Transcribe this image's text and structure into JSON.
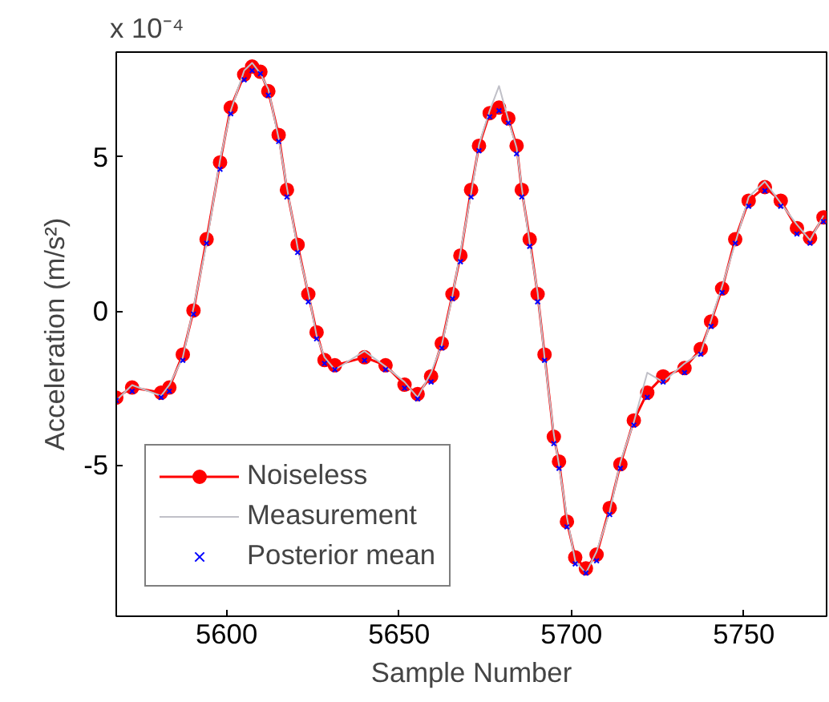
{
  "chart_data": {
    "type": "line",
    "xlabel": "Sample Number",
    "ylabel": "Acceleration (m/s²)",
    "annotations": [
      "x 10⁻⁴"
    ],
    "x": [
      5568,
      5572.6,
      5581,
      5583.4,
      5587.3,
      5590.4,
      5594.2,
      5598.1,
      5601.2,
      5605.1,
      5607.4,
      5609.8,
      5612.1,
      5615.1,
      5617.5,
      5620.6,
      5623.7,
      5626.1,
      5628.4,
      5631.4,
      5640,
      5646.1,
      5651.6,
      5655.4,
      5659.3,
      5662.4,
      5665.5,
      5667.8,
      5670.9,
      5673.2,
      5676.3,
      5679,
      5681.7,
      5684.1,
      5685.6,
      5687.9,
      5690.2,
      5692.2,
      5694.9,
      5696.4,
      5698.7,
      5701.1,
      5704.2,
      5707.3,
      5711.1,
      5714.2,
      5718.1,
      5722,
      5726.6,
      5732.8,
      5737.5,
      5740.5,
      5743.7,
      5747.5,
      5751.4,
      5756.1,
      5760.7,
      5765.4,
      5769.2,
      5773.1
    ],
    "series": [
      {
        "name": "Noiseless",
        "color": "#ff0000",
        "marker": "circle",
        "line_style": "solid",
        "values": [
          -2.81,
          -2.48,
          -2.65,
          -2.48,
          -1.41,
          0.02,
          2.33,
          4.82,
          6.6,
          7.67,
          7.93,
          7.76,
          7.13,
          5.71,
          3.93,
          2.15,
          0.55,
          -0.69,
          -1.59,
          -1.76,
          -1.5,
          -1.76,
          -2.39,
          -2.69,
          -2.12,
          -1.05,
          0.55,
          1.8,
          3.93,
          5.36,
          6.42,
          6.6,
          6.25,
          5.36,
          3.93,
          2.33,
          0.55,
          -1.41,
          -4.08,
          -4.88,
          -6.83,
          -7.99,
          -8.35,
          -7.9,
          -6.39,
          -4.97,
          -3.55,
          -2.65,
          -2.12,
          -1.85,
          -1.23,
          -0.34,
          0.73,
          2.33,
          3.58,
          4.02,
          3.58,
          2.69,
          2.37,
          3.04
        ]
      },
      {
        "name": "Measurement",
        "color": "#c0c0c8",
        "marker": "none",
        "line_style": "solid",
        "values": [
          -2.9,
          -2.4,
          -2.75,
          -2.4,
          -1.5,
          0.1,
          2.2,
          4.9,
          6.5,
          7.8,
          8.05,
          7.7,
          7.2,
          5.6,
          4.0,
          2.05,
          0.6,
          -0.8,
          -1.5,
          -1.9,
          -1.3,
          -1.8,
          -2.3,
          -2.8,
          -2.0,
          -1.1,
          0.5,
          1.9,
          3.8,
          5.4,
          6.5,
          7.3,
          6.2,
          5.3,
          4.0,
          2.2,
          0.6,
          -1.5,
          -4.0,
          -5.0,
          -6.7,
          -8.1,
          -8.5,
          -7.8,
          -6.5,
          -4.9,
          -3.6,
          -2.0,
          -2.3,
          -1.7,
          -1.35,
          -0.3,
          0.8,
          2.2,
          3.7,
          4.2,
          3.5,
          2.8,
          2.3,
          3.1
        ]
      },
      {
        "name": "Posterior mean",
        "type": "scatter",
        "color": "#0000ff",
        "marker": "cross",
        "values": [
          -2.9,
          -2.6,
          -2.8,
          -2.6,
          -1.6,
          -0.1,
          2.2,
          4.6,
          6.4,
          7.5,
          7.8,
          7.7,
          7.0,
          5.5,
          3.7,
          1.9,
          0.3,
          -0.9,
          -1.7,
          -1.9,
          -1.6,
          -1.9,
          -2.5,
          -2.85,
          -2.3,
          -1.2,
          0.4,
          1.6,
          3.7,
          5.2,
          6.3,
          6.5,
          6.1,
          5.1,
          3.7,
          2.1,
          0.3,
          -1.6,
          -4.3,
          -5.1,
          -7.0,
          -8.2,
          -8.5,
          -8.1,
          -6.6,
          -5.1,
          -3.7,
          -2.8,
          -2.3,
          -2.0,
          -1.4,
          -0.5,
          0.6,
          2.2,
          3.4,
          3.9,
          3.4,
          2.5,
          2.2,
          2.9
        ]
      }
    ],
    "xlim": [
      5568,
      5774
    ],
    "ylim": [
      -9.9,
      8.4
    ],
    "xticks": [
      5600,
      5650,
      5700,
      5750
    ],
    "yticks": [
      -5,
      0,
      5
    ],
    "legend": "bottom left",
    "grid": false
  }
}
